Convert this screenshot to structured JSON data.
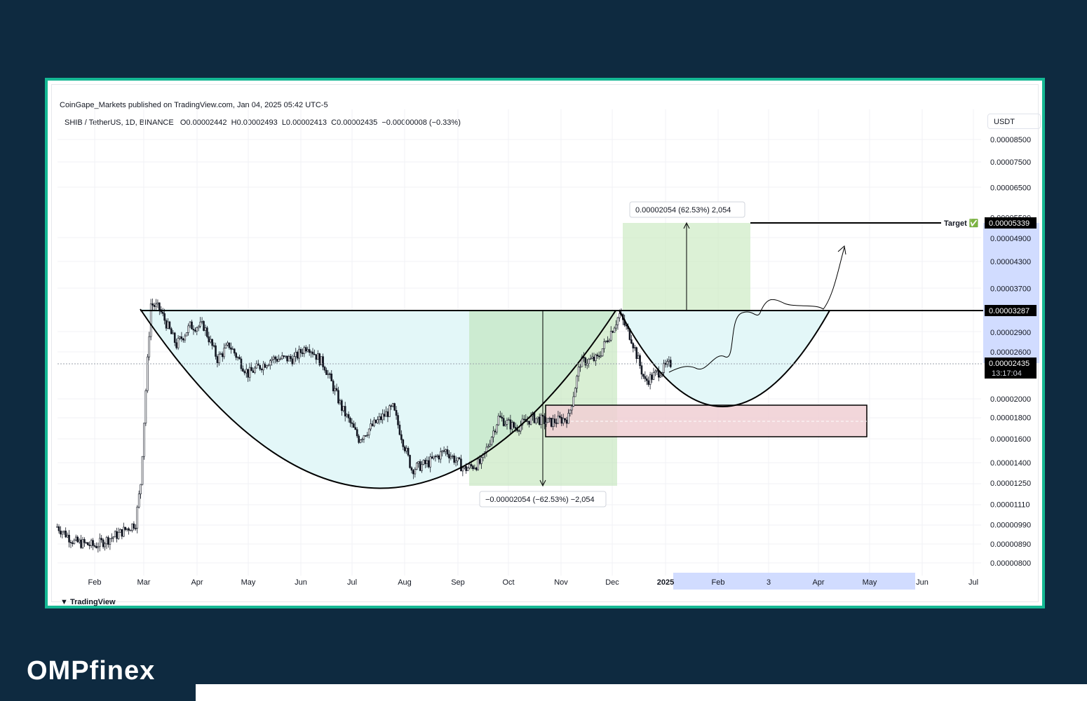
{
  "header": {
    "published": "CoinGape_Markets published on TradingView.com, Jan 04, 2025 05:42 UTC-5",
    "symbol": "SHIB / TetherUS, 1D, BINANCE",
    "ohlc": "O0.00002442  H0.00002493  L0.00002413  C0.00002435  −0.00000008 (−0.33%)",
    "currency": "USDT"
  },
  "footer": {
    "tradingview_logo": "TradingView"
  },
  "brand": {
    "name": "OMPfinex"
  },
  "colors": {
    "frame": "#15b894",
    "background": "#0e2a40",
    "cup_fill": "#e3f7f8",
    "green_zone": "#cdebc4",
    "red_zone": "#f0cfd4",
    "candle": "#131722",
    "axis_highlight": "#c9d6ff"
  },
  "chart_data": {
    "type": "candlestick",
    "symbol": "SHIB / TetherUS",
    "timeframe": "1D",
    "exchange": "BINANCE",
    "x_ticks": [
      "Feb",
      "Mar",
      "Apr",
      "May",
      "Jun",
      "Jul",
      "Aug",
      "Sep",
      "Oct",
      "Nov",
      "Dec",
      "2025",
      "Feb",
      "3",
      "Apr",
      "May",
      "Jun",
      "Jul"
    ],
    "y_ticks": [
      "0.00008500",
      "0.00007500",
      "0.00006500",
      "0.00005500",
      "0.00004900",
      "0.00004300",
      "0.00003700",
      "0.00002900",
      "0.00002600",
      "0.00002000",
      "0.00001800",
      "0.00001600",
      "0.00001400",
      "0.00001250",
      "0.00001110",
      "0.00000990",
      "0.00000890",
      "0.00000800"
    ],
    "y_scale": "log",
    "price_path": [
      [
        "2024-01-10",
        9.8e-06
      ],
      [
        "2024-01-20",
        9e-06
      ],
      [
        "2024-02-01",
        8.8e-06
      ],
      [
        "2024-02-15",
        9.4e-06
      ],
      [
        "2024-02-25",
        1e-05
      ],
      [
        "2024-02-28",
        1.25e-05
      ],
      [
        "2024-03-02",
        2.1e-05
      ],
      [
        "2024-03-05",
        3.4e-05
      ],
      [
        "2024-03-10",
        3.3e-05
      ],
      [
        "2024-03-20",
        2.7e-05
      ],
      [
        "2024-03-28",
        3e-05
      ],
      [
        "2024-04-05",
        3e-05
      ],
      [
        "2024-04-13",
        2.5e-05
      ],
      [
        "2024-04-20",
        2.7e-05
      ],
      [
        "2024-05-01",
        2.3e-05
      ],
      [
        "2024-05-15",
        2.5e-05
      ],
      [
        "2024-05-28",
        2.5e-05
      ],
      [
        "2024-06-05",
        2.7e-05
      ],
      [
        "2024-06-15",
        2.4e-05
      ],
      [
        "2024-06-25",
        1.9e-05
      ],
      [
        "2024-07-05",
        1.6e-05
      ],
      [
        "2024-07-15",
        1.75e-05
      ],
      [
        "2024-07-25",
        1.9e-05
      ],
      [
        "2024-08-05",
        1.35e-05
      ],
      [
        "2024-08-15",
        1.4e-05
      ],
      [
        "2024-08-25",
        1.5e-05
      ],
      [
        "2024-09-05",
        1.35e-05
      ],
      [
        "2024-09-15",
        1.4e-05
      ],
      [
        "2024-09-25",
        1.8e-05
      ],
      [
        "2024-10-05",
        1.7e-05
      ],
      [
        "2024-10-15",
        1.8e-05
      ],
      [
        "2024-10-25",
        1.75e-05
      ],
      [
        "2024-11-05",
        1.8e-05
      ],
      [
        "2024-11-12",
        2.45e-05
      ],
      [
        "2024-11-22",
        2.5e-05
      ],
      [
        "2024-12-05",
        3.2e-05
      ],
      [
        "2024-12-12",
        2.8e-05
      ],
      [
        "2024-12-20",
        2.2e-05
      ],
      [
        "2025-01-04",
        2.435e-05
      ]
    ],
    "last_price": "0.00002435",
    "countdown": "13:17:04",
    "resistance": {
      "price": "0.00003287"
    },
    "target": {
      "label": "Target ✅",
      "price": "0.00005339"
    },
    "measure_up": {
      "label": "0.00002054 (62.53%) 2,054"
    },
    "measure_down": {
      "label": "−0.00002054 (−62.53%) −2,054"
    },
    "support_zone": {
      "from": 1.62e-05,
      "to": 1.96e-05
    },
    "patterns": [
      "cup",
      "handle",
      "projected path"
    ]
  }
}
